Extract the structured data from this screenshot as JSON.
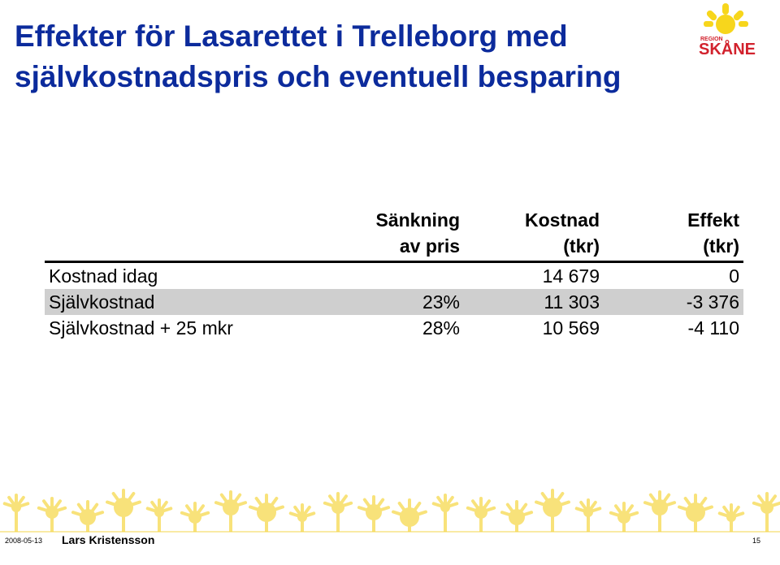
{
  "header": {
    "title_lines": [
      "Effekter för Lasarettet i Trelleborg med",
      "självkostnadspris och eventuell besparing"
    ],
    "logo": {
      "region": "REGION",
      "name": "SKÅNE"
    }
  },
  "table": {
    "columns": [
      [
        "Sänkning",
        "av pris"
      ],
      [
        "Kostnad",
        "(tkr)"
      ],
      [
        "Effekt",
        "(tkr)"
      ]
    ],
    "rows": [
      {
        "label": "Kostnad idag",
        "cells": [
          null,
          "14 679",
          "0"
        ]
      },
      {
        "label": "Självkostnad",
        "cells": [
          "23%",
          "11 303",
          "-3 376"
        ]
      },
      {
        "label": "Självkostnad + 25 mkr",
        "cells": [
          "28%",
          "10 569",
          "-4 110"
        ]
      }
    ]
  },
  "footer": {
    "date": "2008-05-13",
    "author": "Lars Kristensson",
    "page": "15"
  }
}
